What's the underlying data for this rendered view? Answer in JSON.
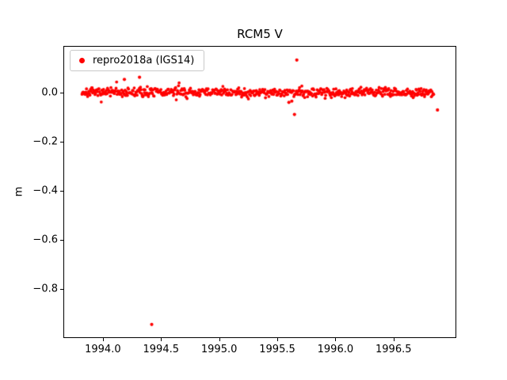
{
  "chart_data": {
    "type": "scatter",
    "title": "RCM5 V",
    "xlabel": "",
    "ylabel": "m",
    "xlim": [
      1993.667,
      1997.033
    ],
    "ylim": [
      -0.995,
      0.185
    ],
    "xticks": [
      1994.0,
      1994.5,
      1995.0,
      1995.5,
      1996.0,
      1996.5
    ],
    "xtick_labels": [
      "1994.0",
      "1994.5",
      "1995.0",
      "1995.5",
      "1996.0",
      "1996.5"
    ],
    "yticks": [
      0.0,
      -0.2,
      -0.4,
      -0.6,
      -0.8
    ],
    "ytick_labels": [
      "0.0",
      "−0.2",
      "−0.4",
      "−0.6",
      "−0.8"
    ],
    "grid": false,
    "axis_color": "#000000",
    "background_color": "#ffffff",
    "legend": {
      "position": "upper-left",
      "edge_color": "#c9c9c9"
    },
    "series": [
      {
        "name": "repro2018a (IGS14)",
        "color": "#ff0000",
        "marker": "dot",
        "marker_radius_px": 1.9,
        "band": {
          "description": "dense daily solution scatter centered near 0 m",
          "x_start": 1993.82,
          "x_end": 1996.845,
          "n_points": 620,
          "y_mean": 0.0,
          "y_amplitude": 0.018,
          "seed": 7
        },
        "outliers": [
          [
            1994.42,
            -0.943
          ],
          [
            1995.648,
            -0.09
          ],
          [
            1995.668,
            0.131
          ],
          [
            1996.878,
            -0.072
          ],
          [
            1994.185,
            0.052
          ],
          [
            1994.315,
            0.061
          ],
          [
            1995.6,
            -0.041
          ],
          [
            1995.625,
            -0.036
          ]
        ]
      }
    ]
  }
}
